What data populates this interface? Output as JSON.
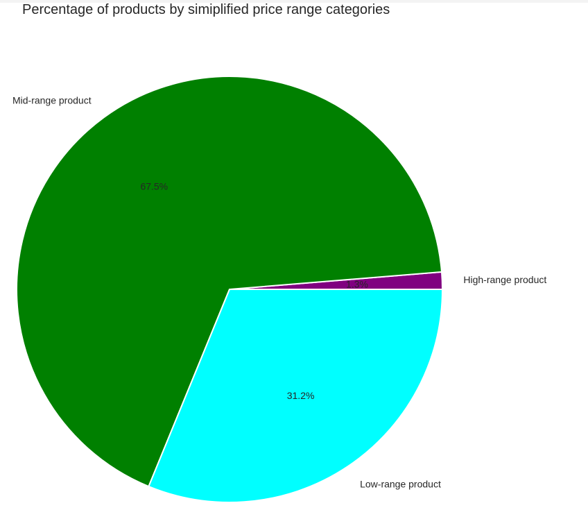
{
  "chart_data": {
    "type": "pie",
    "title": "Percentage of products by simiplified price range categories",
    "slices": [
      {
        "label": "High-range product",
        "value": 1.3,
        "pct_label": "1.3%",
        "color": "#800080"
      },
      {
        "label": "Mid-range product",
        "value": 67.5,
        "pct_label": "67.5%",
        "color": "#008000"
      },
      {
        "label": "Low-range product",
        "value": 31.2,
        "pct_label": "31.2%",
        "color": "#00ffff"
      }
    ],
    "start_angle_deg": 0,
    "direction": "counterclockwise",
    "edge_color": "#ffffff"
  }
}
